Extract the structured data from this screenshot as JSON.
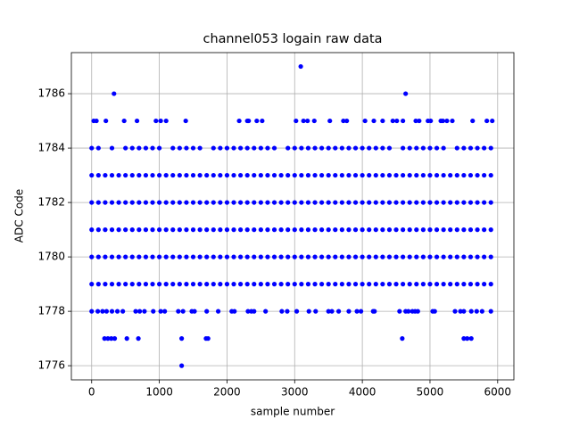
{
  "chart_data": {
    "type": "scatter",
    "title": "channel053 logain raw data",
    "xlabel": "sample number",
    "ylabel": "ADC Code",
    "color": "#0000ff",
    "grid": true,
    "xlim": [
      -300,
      6240
    ],
    "xticks": [
      0,
      1000,
      2000,
      3000,
      4000,
      5000,
      6000
    ],
    "ylim": [
      1775.48,
      1787.51
    ],
    "yticks": [
      1776,
      1778,
      1780,
      1782,
      1784,
      1786
    ],
    "series": [
      {
        "x": [
          0,
          100,
          200,
          300,
          400,
          500,
          600,
          700,
          800,
          900,
          1000,
          1100,
          1200,
          1300,
          1400,
          1500,
          1600,
          1700,
          1800,
          1900,
          2000,
          2100,
          2200,
          2300,
          2400,
          2500,
          2600,
          2700,
          2800,
          2900,
          3000,
          3100,
          3200,
          3300,
          3400,
          3500,
          3600,
          3700,
          3800,
          3900,
          4000,
          4100,
          4200,
          4300,
          4400,
          4500,
          4600,
          4700,
          4800,
          4900,
          5000,
          5100,
          5200,
          5300,
          5400,
          5500,
          5600,
          5700,
          5800,
          5900
        ],
        "values": [
          1779,
          1779,
          1779,
          1779,
          1779,
          1779,
          1779,
          1779,
          1779,
          1779,
          1779,
          1779,
          1779,
          1779,
          1779,
          1779,
          1779,
          1779,
          1779,
          1779,
          1779,
          1779,
          1779,
          1779,
          1779,
          1779,
          1779,
          1779,
          1779,
          1779,
          1779,
          1779,
          1779,
          1779,
          1779,
          1779,
          1779,
          1779,
          1779,
          1779,
          1779,
          1779,
          1779,
          1779,
          1779,
          1779,
          1779,
          1779,
          1779,
          1779,
          1779,
          1779,
          1779,
          1779,
          1779,
          1779,
          1779,
          1779,
          1779,
          1779
        ]
      },
      {
        "x": [
          0,
          100,
          200,
          300,
          400,
          500,
          600,
          700,
          800,
          900,
          1000,
          1100,
          1200,
          1300,
          1400,
          1500,
          1600,
          1700,
          1800,
          1900,
          2000,
          2100,
          2200,
          2300,
          2400,
          2500,
          2600,
          2700,
          2800,
          2900,
          3000,
          3100,
          3200,
          3300,
          3400,
          3500,
          3600,
          3700,
          3800,
          3900,
          4000,
          4100,
          4200,
          4300,
          4400,
          4500,
          4600,
          4700,
          4800,
          4900,
          5000,
          5100,
          5200,
          5300,
          5400,
          5500,
          5600,
          5700,
          5800,
          5900
        ],
        "values": [
          1780,
          1780,
          1780,
          1780,
          1780,
          1780,
          1780,
          1780,
          1780,
          1780,
          1780,
          1780,
          1780,
          1780,
          1780,
          1780,
          1780,
          1780,
          1780,
          1780,
          1780,
          1780,
          1780,
          1780,
          1780,
          1780,
          1780,
          1780,
          1780,
          1780,
          1780,
          1780,
          1780,
          1780,
          1780,
          1780,
          1780,
          1780,
          1780,
          1780,
          1780,
          1780,
          1780,
          1780,
          1780,
          1780,
          1780,
          1780,
          1780,
          1780,
          1780,
          1780,
          1780,
          1780,
          1780,
          1780,
          1780,
          1780,
          1780,
          1780
        ]
      },
      {
        "x": [
          0,
          100,
          200,
          300,
          400,
          500,
          600,
          700,
          800,
          900,
          1000,
          1100,
          1200,
          1300,
          1400,
          1500,
          1600,
          1700,
          1800,
          1900,
          2000,
          2100,
          2200,
          2300,
          2400,
          2500,
          2600,
          2700,
          2800,
          2900,
          3000,
          3100,
          3200,
          3300,
          3400,
          3500,
          3600,
          3700,
          3800,
          3900,
          4000,
          4100,
          4200,
          4300,
          4400,
          4500,
          4600,
          4700,
          4800,
          4900,
          5000,
          5100,
          5200,
          5300,
          5400,
          5500,
          5600,
          5700,
          5800,
          5900
        ],
        "values": [
          1781,
          1781,
          1781,
          1781,
          1781,
          1781,
          1781,
          1781,
          1781,
          1781,
          1781,
          1781,
          1781,
          1781,
          1781,
          1781,
          1781,
          1781,
          1781,
          1781,
          1781,
          1781,
          1781,
          1781,
          1781,
          1781,
          1781,
          1781,
          1781,
          1781,
          1781,
          1781,
          1781,
          1781,
          1781,
          1781,
          1781,
          1781,
          1781,
          1781,
          1781,
          1781,
          1781,
          1781,
          1781,
          1781,
          1781,
          1781,
          1781,
          1781,
          1781,
          1781,
          1781,
          1781,
          1781,
          1781,
          1781,
          1781,
          1781,
          1781
        ]
      },
      {
        "x": [
          0,
          100,
          200,
          300,
          400,
          500,
          600,
          700,
          800,
          900,
          1000,
          1100,
          1200,
          1300,
          1400,
          1500,
          1600,
          1700,
          1800,
          1900,
          2000,
          2100,
          2200,
          2300,
          2400,
          2500,
          2600,
          2700,
          2800,
          2900,
          3000,
          3100,
          3200,
          3300,
          3400,
          3500,
          3600,
          3700,
          3800,
          3900,
          4000,
          4100,
          4200,
          4300,
          4400,
          4500,
          4600,
          4700,
          4800,
          4900,
          5000,
          5100,
          5200,
          5300,
          5400,
          5500,
          5600,
          5700,
          5800,
          5900
        ],
        "values": [
          1782,
          1782,
          1782,
          1782,
          1782,
          1782,
          1782,
          1782,
          1782,
          1782,
          1782,
          1782,
          1782,
          1782,
          1782,
          1782,
          1782,
          1782,
          1782,
          1782,
          1782,
          1782,
          1782,
          1782,
          1782,
          1782,
          1782,
          1782,
          1782,
          1782,
          1782,
          1782,
          1782,
          1782,
          1782,
          1782,
          1782,
          1782,
          1782,
          1782,
          1782,
          1782,
          1782,
          1782,
          1782,
          1782,
          1782,
          1782,
          1782,
          1782,
          1782,
          1782,
          1782,
          1782,
          1782,
          1782,
          1782,
          1782,
          1782,
          1782
        ]
      },
      {
        "x": [
          0,
          100,
          200,
          300,
          400,
          500,
          600,
          700,
          800,
          900,
          1000,
          1100,
          1200,
          1300,
          1400,
          1500,
          1600,
          1700,
          1800,
          1900,
          2000,
          2100,
          2200,
          2300,
          2400,
          2500,
          2600,
          2700,
          2800,
          2900,
          3000,
          3100,
          3200,
          3300,
          3400,
          3500,
          3600,
          3700,
          3800,
          3900,
          4000,
          4100,
          4200,
          4300,
          4400,
          4500,
          4600,
          4700,
          4800,
          4900,
          5000,
          5100,
          5200,
          5300,
          5400,
          5500,
          5600,
          5700,
          5800,
          5900
        ],
        "values": [
          1783,
          1783,
          1783,
          1783,
          1783,
          1783,
          1783,
          1783,
          1783,
          1783,
          1783,
          1783,
          1783,
          1783,
          1783,
          1783,
          1783,
          1783,
          1783,
          1783,
          1783,
          1783,
          1783,
          1783,
          1783,
          1783,
          1783,
          1783,
          1783,
          1783,
          1783,
          1783,
          1783,
          1783,
          1783,
          1783,
          1783,
          1783,
          1783,
          1783,
          1783,
          1783,
          1783,
          1783,
          1783,
          1783,
          1783,
          1783,
          1783,
          1783,
          1783,
          1783,
          1783,
          1783,
          1783,
          1783,
          1783,
          1783,
          1783,
          1783
        ]
      },
      {
        "x": [
          0,
          100,
          300,
          500,
          600,
          700,
          800,
          900,
          1000,
          1200,
          1300,
          1400,
          1500,
          1600,
          1800,
          1900,
          2000,
          2100,
          2200,
          2300,
          2400,
          2500,
          2600,
          2700,
          2900,
          3000,
          3100,
          3200,
          3300,
          3400,
          3500,
          3600,
          3700,
          3800,
          3900,
          4000,
          4100,
          4200,
          4300,
          4400,
          4600,
          4700,
          4800,
          4900,
          5000,
          5100,
          5200,
          5400,
          5500,
          5600,
          5700,
          5800,
          5900
        ],
        "values": [
          1784,
          1784,
          1784,
          1784,
          1784,
          1784,
          1784,
          1784,
          1784,
          1784,
          1784,
          1784,
          1784,
          1784,
          1784,
          1784,
          1784,
          1784,
          1784,
          1784,
          1784,
          1784,
          1784,
          1784,
          1784,
          1784,
          1784,
          1784,
          1784,
          1784,
          1784,
          1784,
          1784,
          1784,
          1784,
          1784,
          1784,
          1784,
          1784,
          1784,
          1784,
          1784,
          1784,
          1784,
          1784,
          1784,
          1784,
          1784,
          1784,
          1784,
          1784,
          1784,
          1784
        ]
      },
      {
        "x": [
          30,
          70,
          210,
          480,
          670,
          950,
          1020,
          1100,
          1390,
          2180,
          2300,
          2320,
          2440,
          2520,
          3020,
          3130,
          3190,
          3290,
          3520,
          3720,
          3770,
          4040,
          4170,
          4300,
          4450,
          4510,
          4600,
          4790,
          4840,
          4970,
          5010,
          5160,
          5190,
          5250,
          5330,
          5630,
          5840,
          5920
        ],
        "values": [
          1785,
          1785,
          1785,
          1785,
          1785,
          1785,
          1785,
          1785,
          1785,
          1785,
          1785,
          1785,
          1785,
          1785,
          1785,
          1785,
          1785,
          1785,
          1785,
          1785,
          1785,
          1785,
          1785,
          1785,
          1785,
          1785,
          1785,
          1785,
          1785,
          1785,
          1785,
          1785,
          1785,
          1785,
          1785,
          1785,
          1785,
          1785
        ]
      },
      {
        "x": [
          330,
          4640
        ],
        "values": [
          1786,
          1786
        ]
      },
      {
        "x": [
          3090
        ],
        "values": [
          1787
        ]
      },
      {
        "x": [
          0,
          90,
          160,
          220,
          300,
          380,
          460,
          650,
          710,
          780,
          910,
          1020,
          1080,
          1280,
          1350,
          1480,
          1520,
          1700,
          1870,
          2070,
          2110,
          2310,
          2360,
          2400,
          2570,
          2810,
          2890,
          3030,
          3210,
          3310,
          3500,
          3550,
          3650,
          3800,
          3920,
          3980,
          4160,
          4180,
          4550,
          4640,
          4680,
          4740,
          4780,
          4820,
          5040,
          5070,
          5370,
          5450,
          5500,
          5610,
          5690,
          5770,
          5900
        ],
        "values": [
          1778,
          1778,
          1778,
          1778,
          1778,
          1778,
          1778,
          1778,
          1778,
          1778,
          1778,
          1778,
          1778,
          1778,
          1778,
          1778,
          1778,
          1778,
          1778,
          1778,
          1778,
          1778,
          1778,
          1778,
          1778,
          1778,
          1778,
          1778,
          1778,
          1778,
          1778,
          1778,
          1778,
          1778,
          1778,
          1778,
          1778,
          1778,
          1778,
          1778,
          1778,
          1778,
          1778,
          1778,
          1778,
          1778,
          1778,
          1778,
          1778,
          1778,
          1778,
          1778,
          1778
        ]
      },
      {
        "x": [
          190,
          240,
          290,
          340,
          520,
          690,
          1330,
          1690,
          1720,
          4590,
          5500,
          5550,
          5610
        ],
        "values": [
          1777,
          1777,
          1777,
          1777,
          1777,
          1777,
          1777,
          1777,
          1777,
          1777,
          1777,
          1777,
          1777
        ]
      },
      {
        "x": [
          1330
        ],
        "values": [
          1776
        ]
      }
    ]
  }
}
